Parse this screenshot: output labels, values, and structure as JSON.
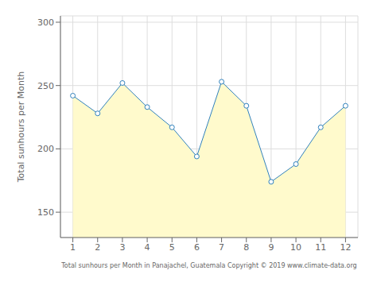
{
  "chart_data": {
    "type": "area",
    "xlabel": "Total sunhours per Month in Panajachel, Guatemala Copyright © 2019 www.climate-data.org",
    "ylabel": "Total sunhours per Month",
    "x": [
      1,
      2,
      3,
      4,
      5,
      6,
      7,
      8,
      9,
      10,
      11,
      12
    ],
    "values": [
      242,
      228,
      252,
      233,
      217,
      194,
      253,
      234,
      174,
      188,
      217,
      234
    ],
    "color": "#FFFACC",
    "marker": "circle",
    "xlim": [
      0.5,
      12.5
    ],
    "xticks": [
      1,
      2,
      3,
      4,
      5,
      6,
      7,
      8,
      9,
      10,
      11,
      12
    ],
    "ylim": [
      130,
      305
    ],
    "yticks": [
      150,
      200,
      250,
      300
    ],
    "grid": true
  }
}
